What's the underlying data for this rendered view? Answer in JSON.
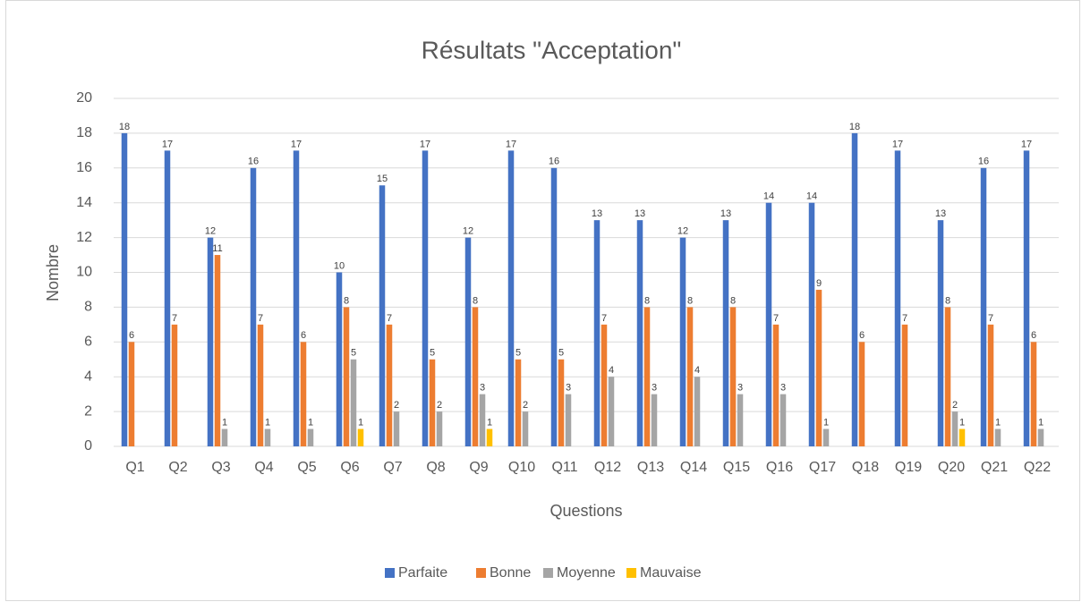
{
  "chart_data": {
    "type": "bar",
    "title": "Résultats \"Acceptation\"",
    "x_label": "Questions",
    "y_label": "Nombre",
    "categories": [
      "Q1",
      "Q2",
      "Q3",
      "Q4",
      "Q5",
      "Q6",
      "Q7",
      "Q8",
      "Q9",
      "Q10",
      "Q11",
      "Q12",
      "Q13",
      "Q14",
      "Q15",
      "Q16",
      "Q17",
      "Q18",
      "Q19",
      "Q20",
      "Q21",
      "Q22"
    ],
    "series": [
      {
        "name": "Parfaite",
        "color": "#4472c4",
        "values": [
          18,
          17,
          12,
          16,
          17,
          10,
          15,
          17,
          12,
          17,
          16,
          13,
          13,
          12,
          13,
          14,
          14,
          18,
          17,
          13,
          16,
          17
        ]
      },
      {
        "name": "Bonne",
        "color": "#ed7d31",
        "values": [
          6,
          7,
          11,
          7,
          6,
          8,
          7,
          5,
          8,
          5,
          5,
          7,
          8,
          8,
          8,
          7,
          9,
          6,
          7,
          8,
          7,
          6
        ]
      },
      {
        "name": "Moyenne",
        "color": "#a5a5a5",
        "values": [
          null,
          null,
          1,
          1,
          1,
          5,
          2,
          2,
          3,
          2,
          3,
          4,
          3,
          4,
          3,
          3,
          1,
          null,
          null,
          2,
          1,
          1
        ]
      },
      {
        "name": "Mauvaise",
        "color": "#ffc000",
        "values": [
          null,
          null,
          null,
          null,
          null,
          1,
          null,
          null,
          1,
          null,
          null,
          null,
          null,
          null,
          null,
          null,
          null,
          null,
          null,
          1,
          null,
          null
        ]
      }
    ],
    "ylim": [
      0,
      20
    ],
    "yticks": [
      0,
      2,
      4,
      6,
      8,
      10,
      12,
      14,
      16,
      18,
      20
    ],
    "grid": true,
    "legend": "bottom"
  }
}
